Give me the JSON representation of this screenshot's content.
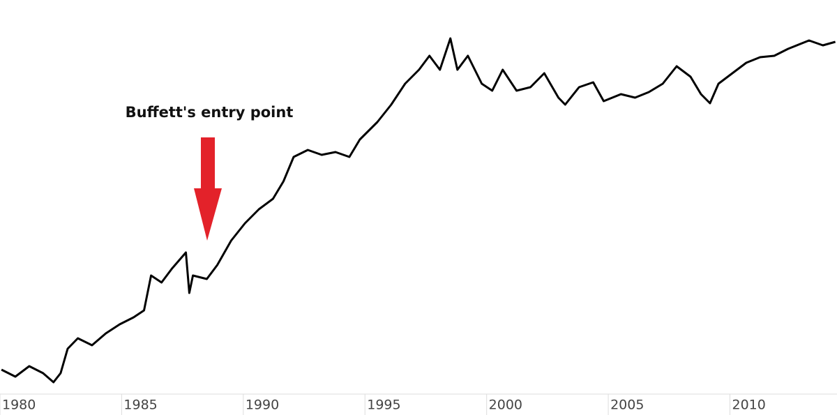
{
  "chart_data": {
    "type": "line",
    "annotation": "Buffett's entry point",
    "x": [
      1980.06,
      1980.63,
      1981.2,
      1981.77,
      1982.2,
      1982.49,
      1982.78,
      1983.2,
      1983.78,
      1984.35,
      1984.92,
      1985.49,
      1985.92,
      1986.21,
      1986.64,
      1987.07,
      1987.64,
      1987.78,
      1987.93,
      1988.5,
      1988.93,
      1989.5,
      1990.07,
      1990.64,
      1991.22,
      1991.65,
      1992.07,
      1992.65,
      1993.22,
      1993.79,
      1994.36,
      1994.79,
      1995.51,
      1996.08,
      1996.65,
      1997.22,
      1997.65,
      1998.08,
      1998.51,
      1998.8,
      1999.23,
      1999.8,
      2000.23,
      2000.66,
      2001.23,
      2001.8,
      2002.37,
      2002.95,
      2003.23,
      2003.8,
      2004.38,
      2004.81,
      2005.52,
      2006.1,
      2006.67,
      2007.24,
      2007.81,
      2008.38,
      2008.81,
      2009.18,
      2009.53,
      2010.1,
      2010.67,
      2011.24,
      2011.82,
      2012.39,
      2013.25,
      2013.82,
      2014.33
    ],
    "values": [
      7,
      5,
      8,
      6,
      3.4,
      6,
      13,
      16,
      14,
      17.4,
      20,
      22,
      24,
      34,
      32,
      36,
      40.6,
      29,
      34,
      33,
      37,
      44,
      49,
      53,
      56,
      61,
      68,
      70,
      68.6,
      69.4,
      68,
      73,
      78,
      83,
      89,
      93,
      97,
      93,
      102,
      93,
      97,
      89,
      87,
      93,
      87,
      88,
      92,
      85,
      83,
      88,
      89.4,
      84,
      86,
      85,
      86.6,
      89,
      94,
      91,
      86,
      83.4,
      89,
      92,
      95,
      96.6,
      97,
      99,
      101.4,
      100,
      101
    ],
    "color": "#000000",
    "xlim": [
      1980,
      2014.4
    ],
    "xticks": [
      1980,
      1985,
      1990,
      1995,
      2000,
      2005,
      2010
    ],
    "ylim": [
      0,
      113
    ]
  }
}
